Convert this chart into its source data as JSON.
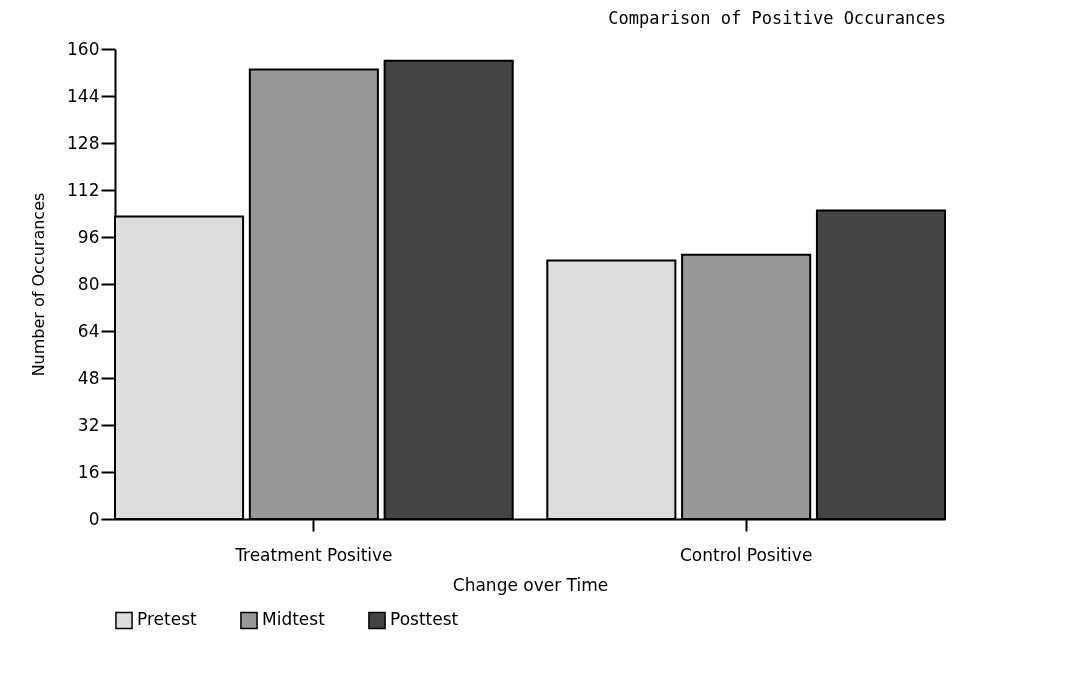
{
  "chart_data": {
    "type": "bar",
    "title": "Comparison of Positive Occurances",
    "xlabel": "Change over Time",
    "ylabel": "Number of Occurances",
    "categories": [
      "Treatment Positive",
      "Control Positive"
    ],
    "series": [
      {
        "name": "Pretest",
        "color": "#dddddd",
        "values": [
          103,
          88
        ]
      },
      {
        "name": "Midtest",
        "color": "#999999",
        "values": [
          153,
          90
        ]
      },
      {
        "name": "Posttest",
        "color": "#444444",
        "values": [
          156,
          105
        ]
      }
    ],
    "ylim": [
      0,
      160
    ],
    "yticks": [
      0,
      16,
      32,
      48,
      64,
      80,
      96,
      112,
      128,
      144,
      160
    ],
    "grid": false,
    "legend": "bottom"
  }
}
